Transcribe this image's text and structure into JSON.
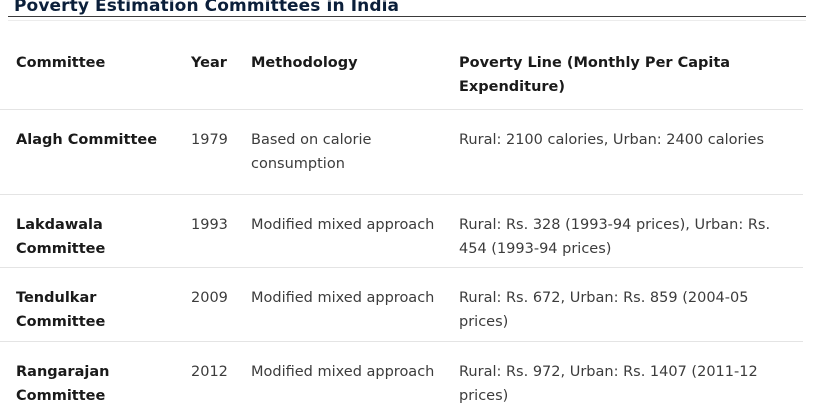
{
  "title": "Poverty Estimation Committees in India",
  "table": {
    "headers": {
      "committee": "Committee",
      "year": "Year",
      "methodology": "Methodology",
      "poverty_line": "Poverty Line (Monthly Per Capita Expenditure)"
    },
    "rows": [
      {
        "committee": "Alagh Committee",
        "year": "1979",
        "methodology": "Based on calorie consumption",
        "poverty_line": "Rural: 2100 calories, Urban: 2400 calories"
      },
      {
        "committee": "Lakdawala Committee",
        "year": "1993",
        "methodology": "Modified mixed approach",
        "poverty_line": "Rural: Rs. 328 (1993-94 prices), Urban: Rs. 454 (1993-94 prices)"
      },
      {
        "committee": "Tendulkar Committee",
        "year": "2009",
        "methodology": "Modified mixed approach",
        "poverty_line": "Rural: Rs. 672, Urban: Rs. 859 (2004-05 prices)"
      },
      {
        "committee": "Rangarajan Committee",
        "year": "2012",
        "methodology": "Modified mixed approach",
        "poverty_line": "Rural: Rs. 972, Urban: Rs. 1407 (2011-12 prices)"
      }
    ]
  }
}
